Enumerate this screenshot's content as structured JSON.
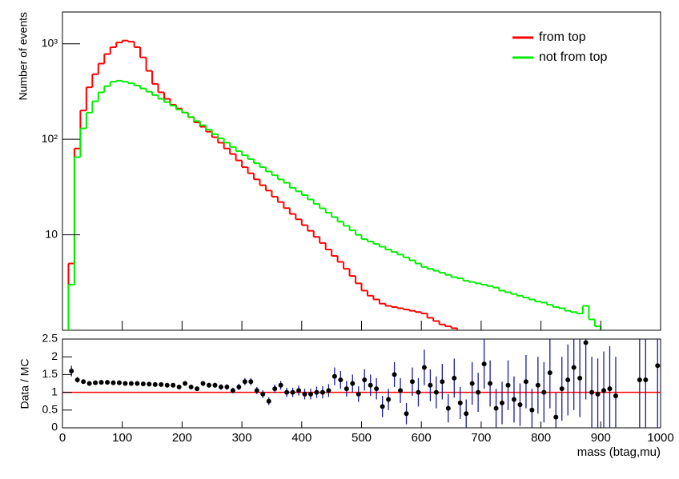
{
  "chart_data": [
    {
      "type": "histogram",
      "y_label": "Number of events",
      "log_y": true,
      "xlim": [
        0,
        1000
      ],
      "xticks": [
        0,
        100,
        200,
        300,
        400,
        500,
        600,
        700,
        800,
        900,
        1000
      ],
      "ylim": [
        1,
        2150
      ],
      "yticks": [
        10,
        {
          "value": 100,
          "label": "10²"
        },
        {
          "value": 1000,
          "label": "10³"
        }
      ],
      "legend": "upper right",
      "bins": [
        0,
        10,
        20,
        30,
        40,
        50,
        60,
        70,
        80,
        90,
        100,
        110,
        120,
        130,
        140,
        150,
        160,
        170,
        180,
        190,
        200,
        210,
        220,
        230,
        240,
        250,
        260,
        270,
        280,
        290,
        300,
        310,
        320,
        330,
        340,
        350,
        360,
        370,
        380,
        390,
        400,
        410,
        420,
        430,
        440,
        450,
        460,
        470,
        480,
        490,
        500,
        510,
        520,
        530,
        540,
        550,
        560,
        570,
        580,
        590,
        600,
        610,
        620,
        630,
        640,
        650,
        660,
        670,
        680,
        690,
        700,
        710,
        720,
        730,
        740,
        750,
        760,
        770,
        780,
        790,
        800,
        810,
        820,
        830,
        840,
        850,
        860,
        870,
        880,
        890,
        900,
        910,
        920,
        930,
        940,
        950,
        960,
        970,
        980,
        990,
        1000
      ],
      "series": [
        {
          "name": "from top",
          "color": "#ff0000",
          "values": [
            0,
            5,
            80,
            200,
            350,
            480,
            620,
            780,
            920,
            1030,
            1080,
            1050,
            920,
            720,
            520,
            380,
            310,
            265,
            230,
            210,
            190,
            170,
            150,
            135,
            120,
            105,
            92,
            80,
            70,
            60,
            51,
            44,
            38,
            33,
            29,
            25,
            22,
            19,
            16.5,
            14.5,
            12.6,
            11,
            9.5,
            8.2,
            7,
            6,
            5.2,
            4.4,
            3.7,
            3.1,
            2.6,
            2.3,
            2.1,
            1.9,
            1.8,
            1.75,
            1.7,
            1.65,
            1.6,
            1.55,
            1.5,
            1.35,
            1.25,
            1.15,
            1.1,
            1.05,
            0,
            0,
            0,
            0,
            0,
            0,
            0,
            0,
            0,
            0,
            0,
            0,
            0,
            0,
            0,
            0,
            0,
            0,
            0,
            0,
            0,
            0,
            0,
            0,
            0,
            0,
            0,
            0,
            0,
            0,
            0,
            0,
            0,
            0
          ]
        },
        {
          "name": "not from top",
          "color": "#00ee00",
          "values": [
            0,
            3,
            65,
            130,
            190,
            250,
            310,
            360,
            400,
            410,
            400,
            385,
            365,
            340,
            315,
            290,
            265,
            245,
            225,
            205,
            190,
            171,
            155,
            140,
            126,
            113,
            102,
            92,
            83,
            75,
            68,
            62,
            56,
            51,
            46,
            42,
            38,
            35,
            31,
            28.5,
            26,
            23.4,
            21,
            18.9,
            17,
            15.3,
            13.7,
            12.4,
            11.1,
            10,
            9,
            8.5,
            8,
            7.5,
            7,
            6.6,
            6.2,
            5.8,
            5.4,
            5,
            4.6,
            4.4,
            4.2,
            4,
            3.8,
            3.6,
            3.5,
            3.3,
            3.2,
            3.1,
            3,
            2.9,
            2.8,
            2.6,
            2.5,
            2.4,
            2.3,
            2.2,
            2.1,
            2.0,
            1.95,
            1.85,
            1.75,
            1.7,
            1.6,
            1.55,
            1.5,
            1.8,
            1.3,
            1.1,
            0,
            0,
            0,
            0,
            0,
            0,
            0,
            0,
            0,
            0
          ]
        }
      ]
    },
    {
      "type": "errorbar",
      "y_label": "Data / MC",
      "x_label": "mass (btag,mu)",
      "xlim": [
        0,
        1000
      ],
      "xticks": [
        0,
        100,
        200,
        300,
        400,
        500,
        600,
        700,
        800,
        900,
        1000
      ],
      "ylim": [
        0,
        2.5
      ],
      "yticks": [
        0,
        0.5,
        1,
        1.5,
        2,
        2.5
      ],
      "reference_line": 1,
      "reference_color": "#ff0000",
      "marker_color": "#000000",
      "error_color": "#1a1a99",
      "x": [
        15,
        25,
        35,
        45,
        55,
        65,
        75,
        85,
        95,
        105,
        115,
        125,
        135,
        145,
        155,
        165,
        175,
        185,
        195,
        205,
        215,
        225,
        235,
        245,
        255,
        265,
        275,
        285,
        295,
        305,
        315,
        325,
        335,
        345,
        355,
        365,
        375,
        385,
        395,
        405,
        415,
        425,
        435,
        445,
        455,
        465,
        475,
        485,
        495,
        505,
        515,
        525,
        535,
        545,
        555,
        565,
        575,
        585,
        595,
        605,
        615,
        625,
        635,
        645,
        655,
        665,
        675,
        685,
        695,
        705,
        715,
        725,
        735,
        745,
        755,
        765,
        775,
        785,
        795,
        805,
        815,
        825,
        835,
        845,
        855,
        865,
        875,
        885,
        895,
        905,
        915,
        925,
        965,
        975,
        995
      ],
      "values": [
        1.6,
        1.35,
        1.3,
        1.25,
        1.27,
        1.28,
        1.28,
        1.27,
        1.27,
        1.25,
        1.25,
        1.25,
        1.24,
        1.23,
        1.22,
        1.22,
        1.2,
        1.2,
        1.15,
        1.25,
        1.15,
        1.1,
        1.25,
        1.2,
        1.2,
        1.15,
        1.15,
        1.05,
        1.15,
        1.3,
        1.3,
        1.05,
        0.95,
        0.75,
        1.1,
        1.2,
        1.0,
        1.0,
        1.05,
        0.95,
        0.95,
        1.0,
        1.0,
        1.05,
        1.45,
        1.35,
        1.1,
        1.25,
        0.95,
        1.35,
        1.2,
        1.1,
        0.6,
        0.8,
        1.5,
        1.05,
        0.4,
        1.3,
        1.0,
        1.7,
        1.2,
        1.0,
        1.3,
        0.55,
        1.4,
        0.7,
        0.4,
        1.25,
        1.0,
        1.8,
        1.25,
        0.55,
        0.7,
        1.2,
        0.8,
        0.65,
        1.3,
        0.5,
        1.2,
        1.0,
        1.55,
        0.3,
        1.1,
        1.35,
        1.7,
        1.4,
        2.4,
        1.0,
        0.95,
        1.05,
        1.1,
        0.9,
        1.35,
        1.35,
        1.75
      ],
      "errors": [
        0.15,
        0.08,
        0.06,
        0.05,
        0.05,
        0.05,
        0.05,
        0.05,
        0.05,
        0.05,
        0.05,
        0.05,
        0.05,
        0.05,
        0.05,
        0.05,
        0.05,
        0.05,
        0.06,
        0.06,
        0.06,
        0.06,
        0.07,
        0.07,
        0.07,
        0.08,
        0.08,
        0.08,
        0.09,
        0.1,
        0.1,
        0.1,
        0.11,
        0.11,
        0.12,
        0.12,
        0.13,
        0.13,
        0.14,
        0.15,
        0.15,
        0.16,
        0.17,
        0.18,
        0.25,
        0.25,
        0.22,
        0.25,
        0.22,
        0.3,
        0.3,
        0.3,
        0.3,
        0.3,
        0.35,
        0.35,
        0.3,
        0.4,
        0.4,
        0.5,
        0.45,
        0.45,
        0.5,
        0.4,
        0.55,
        0.45,
        0.4,
        0.6,
        0.55,
        0.7,
        0.65,
        0.55,
        0.6,
        0.7,
        0.65,
        0.6,
        0.75,
        0.6,
        0.8,
        0.85,
        1.0,
        0.7,
        0.9,
        1.0,
        1.2,
        1.1,
        1.6,
        1.0,
        1.0,
        1.1,
        1.2,
        1.1,
        1.6,
        1.6,
        1.8
      ]
    }
  ]
}
